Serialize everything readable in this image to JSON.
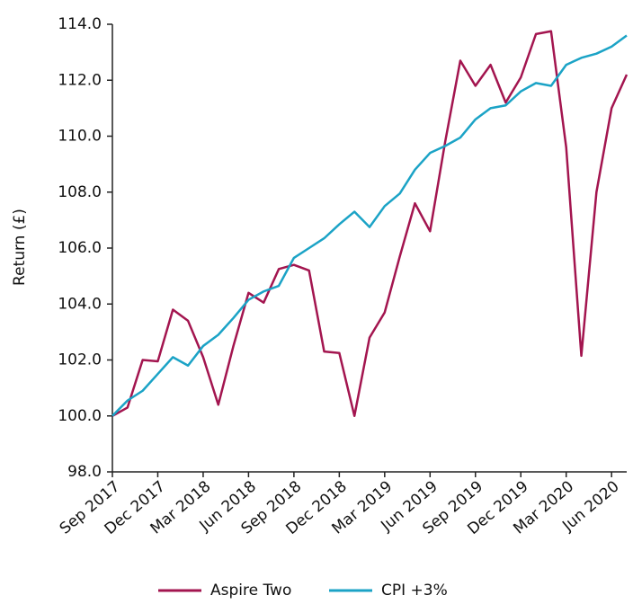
{
  "chart_data": {
    "type": "line",
    "y_label": "Return (£)",
    "categories": [
      "Sep 2017",
      null,
      null,
      "Dec 2017",
      null,
      null,
      "Mar 2018",
      null,
      null,
      "Jun 2018",
      null,
      null,
      "Sep 2018",
      null,
      null,
      "Dec 2018",
      null,
      null,
      "Mar 2019",
      null,
      null,
      "Jun 2019",
      null,
      null,
      "Sep 2019",
      null,
      null,
      "Dec 2019",
      null,
      null,
      "Mar 2020",
      null,
      null,
      "Jun 2020",
      null
    ],
    "series": [
      {
        "name": "Aspire Two",
        "color": "#a3154f",
        "values": [
          100.0,
          100.3,
          102.0,
          101.95,
          103.8,
          103.4,
          102.1,
          100.4,
          102.5,
          104.4,
          104.05,
          105.25,
          105.4,
          105.2,
          102.3,
          102.25,
          100.0,
          102.8,
          103.7,
          105.7,
          107.6,
          106.6,
          109.8,
          112.7,
          111.8,
          112.55,
          111.2,
          112.1,
          113.65,
          113.75,
          109.6,
          102.15,
          108.0,
          111.0,
          112.2
        ]
      },
      {
        "name": "CPI +3%",
        "color": "#1ba3c6",
        "values": [
          100.0,
          100.55,
          100.9,
          101.5,
          102.1,
          101.8,
          102.5,
          102.9,
          103.5,
          104.15,
          104.45,
          104.65,
          105.65,
          106.0,
          106.35,
          106.85,
          107.3,
          106.75,
          107.5,
          107.95,
          108.8,
          109.4,
          109.65,
          109.95,
          110.6,
          111.0,
          111.1,
          111.6,
          111.9,
          111.8,
          112.55,
          112.8,
          112.95,
          113.2,
          113.6
        ]
      }
    ],
    "ylim": [
      98,
      114
    ],
    "yticks": [
      {
        "value": 98,
        "label": "98.0"
      },
      {
        "value": 100,
        "label": "100.0"
      },
      {
        "value": 102,
        "label": "102.0"
      },
      {
        "value": 104,
        "label": "104.0"
      },
      {
        "value": 106,
        "label": "106.0"
      },
      {
        "value": 108,
        "label": "108.0"
      },
      {
        "value": 110,
        "label": "110.0"
      },
      {
        "value": 112,
        "label": "112.0"
      },
      {
        "value": 114,
        "label": "114.0"
      }
    ],
    "legend": "bottom"
  }
}
